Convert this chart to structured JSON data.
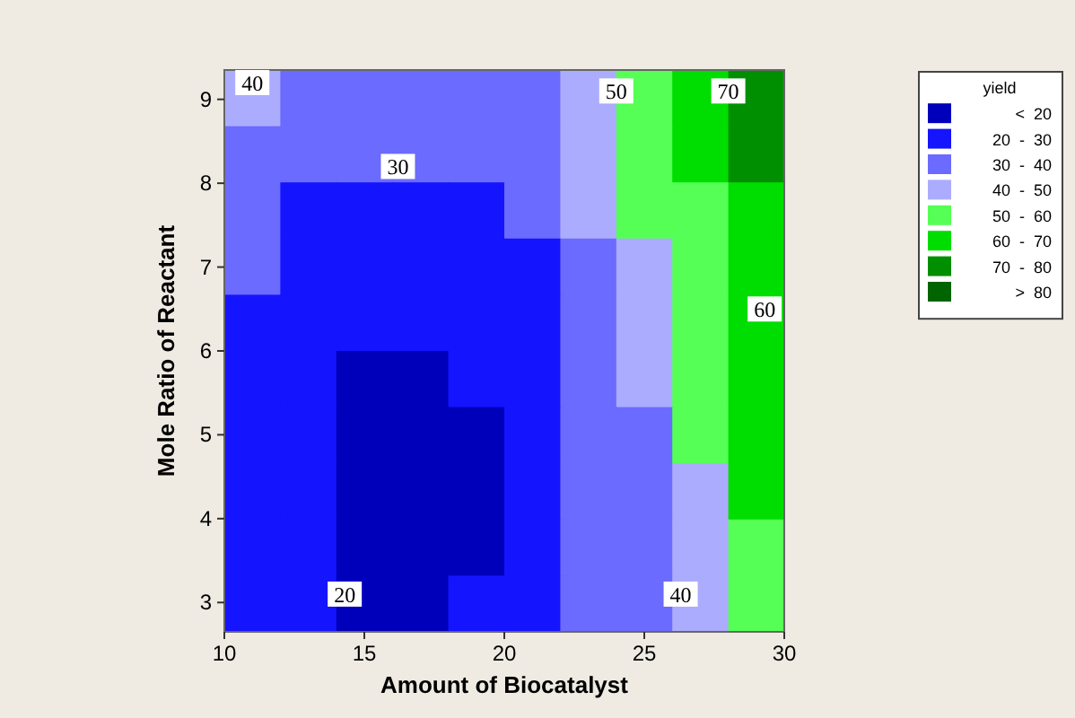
{
  "chart_data": {
    "type": "heatmap",
    "xlabel": "Amount of Biocatalyst",
    "ylabel": "Mole Ratio of Reactant",
    "legend_title": "yield",
    "clim": [
      10,
      90
    ],
    "xlim": [
      10,
      30
    ],
    "xticks": [
      10,
      15,
      20,
      25,
      30
    ],
    "ylim": [
      2.65,
      9.35
    ],
    "yticks": [
      3,
      4,
      5,
      6,
      7,
      8,
      9
    ],
    "cticks": [
      {
        "value": 15,
        "label": "<  20"
      },
      {
        "value": 25,
        "label": "20  -  30"
      },
      {
        "value": 35,
        "label": "30  -  40"
      },
      {
        "value": 45,
        "label": "40  -  50"
      },
      {
        "value": 55,
        "label": "50  -  60"
      },
      {
        "value": 65,
        "label": "60  -  70"
      },
      {
        "value": 75,
        "label": "70  -  80"
      },
      {
        "value": 85,
        "label": ">  80"
      }
    ],
    "colors": [
      "#0000bb",
      "#1414ff",
      "#6b6bff",
      "#acacff",
      "#55ff55",
      "#00dd00",
      "#008f00",
      "#006400"
    ],
    "cells": [
      [
        45,
        35,
        35,
        35,
        35,
        35,
        45,
        55,
        65,
        75
      ],
      [
        35,
        35,
        35,
        35,
        35,
        35,
        45,
        55,
        65,
        75
      ],
      [
        35,
        25,
        25,
        25,
        25,
        35,
        45,
        55,
        55,
        65
      ],
      [
        35,
        25,
        25,
        25,
        25,
        25,
        35,
        45,
        55,
        65
      ],
      [
        25,
        25,
        25,
        25,
        25,
        25,
        35,
        45,
        55,
        65
      ],
      [
        25,
        25,
        15,
        15,
        25,
        25,
        35,
        45,
        55,
        65
      ],
      [
        25,
        25,
        15,
        15,
        15,
        25,
        35,
        35,
        55,
        65
      ],
      [
        25,
        25,
        15,
        15,
        15,
        25,
        35,
        35,
        45,
        65
      ],
      [
        25,
        25,
        15,
        15,
        15,
        25,
        35,
        35,
        45,
        55
      ],
      [
        25,
        25,
        15,
        15,
        25,
        25,
        35,
        35,
        45,
        55
      ]
    ],
    "annotations": [
      "40",
      "30",
      "50",
      "70",
      "60",
      "40",
      "20"
    ]
  }
}
